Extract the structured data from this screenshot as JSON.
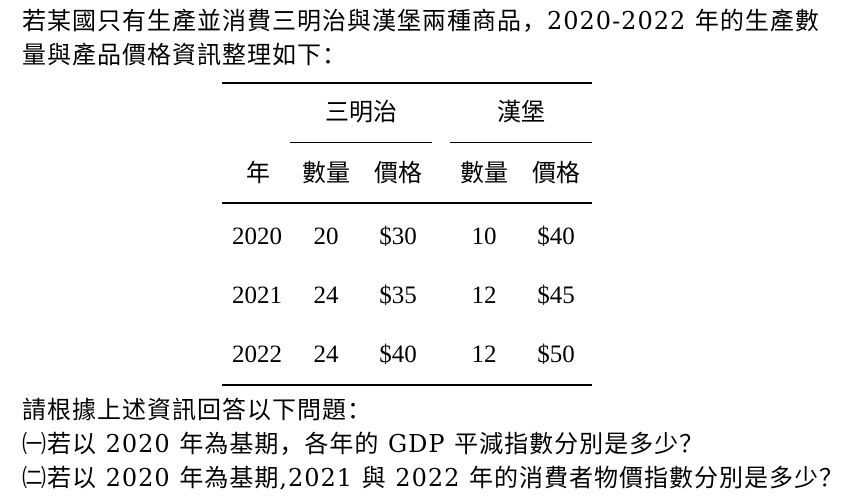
{
  "intro_lines": [
    "若某國只有生產並消費三明治與漢堡兩種商品，2020-2022 年的生產數",
    "量與產品價格資訊整理如下："
  ],
  "table": {
    "group_headers": [
      "三明治",
      "漢堡"
    ],
    "column_headers": [
      "年",
      "數量",
      "價格",
      "數量",
      "價格"
    ],
    "rows": [
      [
        "2020",
        "20",
        "$30",
        "10",
        "$40"
      ],
      [
        "2021",
        "24",
        "$35",
        "12",
        "$45"
      ],
      [
        "2022",
        "24",
        "$40",
        "12",
        "$50"
      ]
    ]
  },
  "questions": {
    "lead": "請根據上述資訊回答以下問題：",
    "q1": "㈠若以 2020 年為基期，各年的 GDP 平減指數分別是多少？",
    "q2": "㈡若以 2020 年為基期,2021 與 2022 年的消費者物價指數分別是多少？"
  }
}
